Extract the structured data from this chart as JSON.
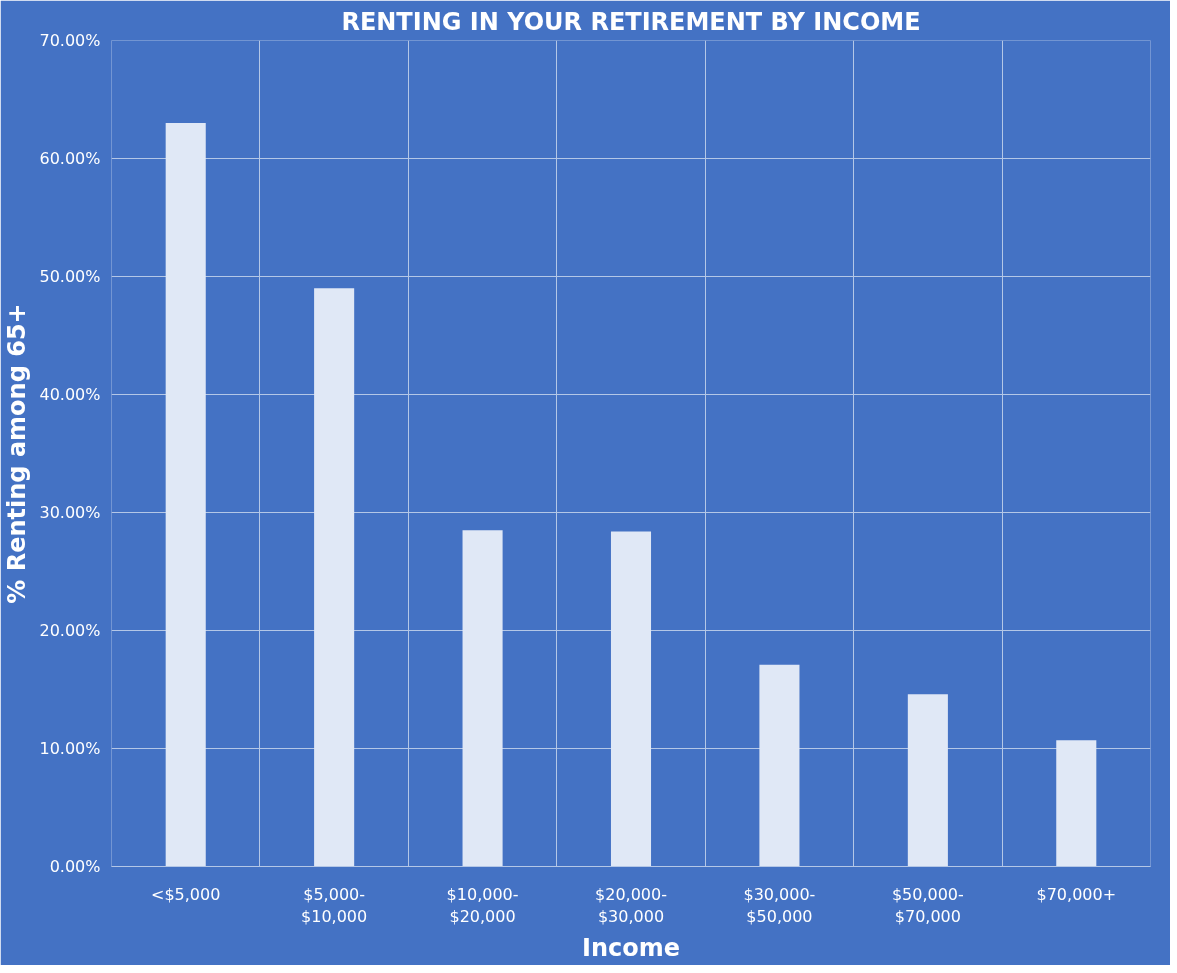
{
  "chart_data": {
    "type": "bar",
    "title": "RENTING IN YOUR RETIREMENT BY INCOME",
    "xlabel": "Income",
    "ylabel": "% Renting among 65+",
    "categories": [
      "<$5,000",
      "$5,000-\n$10,000",
      "$10,000-\n$20,000",
      "$20,000-\n$30,000",
      "$30,000-\n$50,000",
      "$50,000-\n$70,000",
      "$70,000+"
    ],
    "values": [
      63,
      49,
      28.5,
      28.4,
      17.1,
      14.6,
      10.7
    ],
    "color": "#e0e8f6",
    "ylim": [
      0,
      70
    ],
    "yticks": [
      {
        "value": 0,
        "label": "0.00%"
      },
      {
        "value": 10,
        "label": "10.00%"
      },
      {
        "value": 20,
        "label": "20.00%"
      },
      {
        "value": 30,
        "label": "30.00%"
      },
      {
        "value": 40,
        "label": "40.00%"
      },
      {
        "value": 50,
        "label": "50.00%"
      },
      {
        "value": 60,
        "label": "60.00%"
      },
      {
        "value": 70,
        "label": "70.00%"
      }
    ],
    "grid": true
  }
}
